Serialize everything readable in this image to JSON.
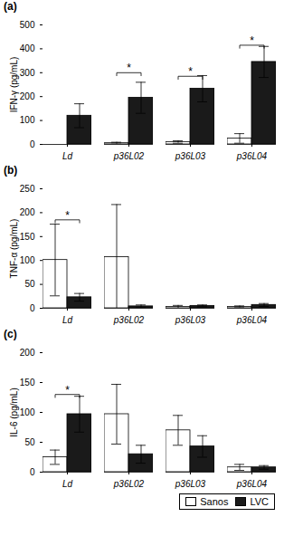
{
  "chart_data": [
    {
      "type": "bar",
      "title": "(a)",
      "ylabel": "IFN-γ (pg/mL)",
      "categories": [
        "Ld",
        "p36L02",
        "p36L03",
        "p36L04"
      ],
      "series": [
        {
          "name": "Sanos",
          "color": "#ffffff",
          "values": [
            0,
            5,
            10,
            25
          ],
          "errors": [
            0,
            4,
            5,
            20
          ]
        },
        {
          "name": "LVC",
          "color": "#1a1a1a",
          "values": [
            120,
            195,
            233,
            345
          ],
          "errors": [
            50,
            65,
            55,
            65
          ]
        }
      ],
      "ylim": [
        0,
        500
      ],
      "yticks": [
        0,
        100,
        200,
        300,
        400,
        500
      ],
      "grid": false,
      "annotations": [
        {
          "text": "*",
          "category": "p36L02",
          "y": 300
        },
        {
          "text": "*",
          "category": "p36L03",
          "y": 285
        },
        {
          "text": "*",
          "category": "p36L04",
          "y": 415
        }
      ]
    },
    {
      "type": "bar",
      "title": "(b)",
      "ylabel": "TNF-α (pg/mL)",
      "categories": [
        "Ld",
        "p36L02",
        "p36L03",
        "p36L04"
      ],
      "series": [
        {
          "name": "Sanos",
          "color": "#ffffff",
          "values": [
            101,
            107,
            3,
            3
          ],
          "errors": [
            75,
            110,
            3,
            2
          ]
        },
        {
          "name": "LVC",
          "color": "#1a1a1a",
          "values": [
            23,
            4,
            5,
            7
          ],
          "errors": [
            8,
            3,
            2,
            3
          ]
        }
      ],
      "ylim": [
        0,
        250
      ],
      "yticks": [
        0,
        50,
        100,
        150,
        200,
        250
      ],
      "grid": false,
      "annotations": [
        {
          "text": "*",
          "category": "Ld",
          "y": 185
        }
      ]
    },
    {
      "type": "bar",
      "title": "(c)",
      "ylabel": "IL-6 (pg/mL)",
      "categories": [
        "Ld",
        "p36L02",
        "p36L03",
        "p36L04"
      ],
      "series": [
        {
          "name": "Sanos",
          "color": "#ffffff",
          "values": [
            25,
            97,
            70,
            8
          ],
          "errors": [
            12,
            50,
            25,
            5
          ]
        },
        {
          "name": "LVC",
          "color": "#1a1a1a",
          "values": [
            97,
            30,
            43,
            8
          ],
          "errors": [
            30,
            15,
            18,
            3
          ]
        }
      ],
      "ylim": [
        0,
        200
      ],
      "yticks": [
        0,
        50,
        100,
        150,
        200
      ],
      "grid": false,
      "annotations": [
        {
          "text": "*",
          "category": "Ld",
          "y": 130
        }
      ],
      "legend": "lower right"
    }
  ]
}
